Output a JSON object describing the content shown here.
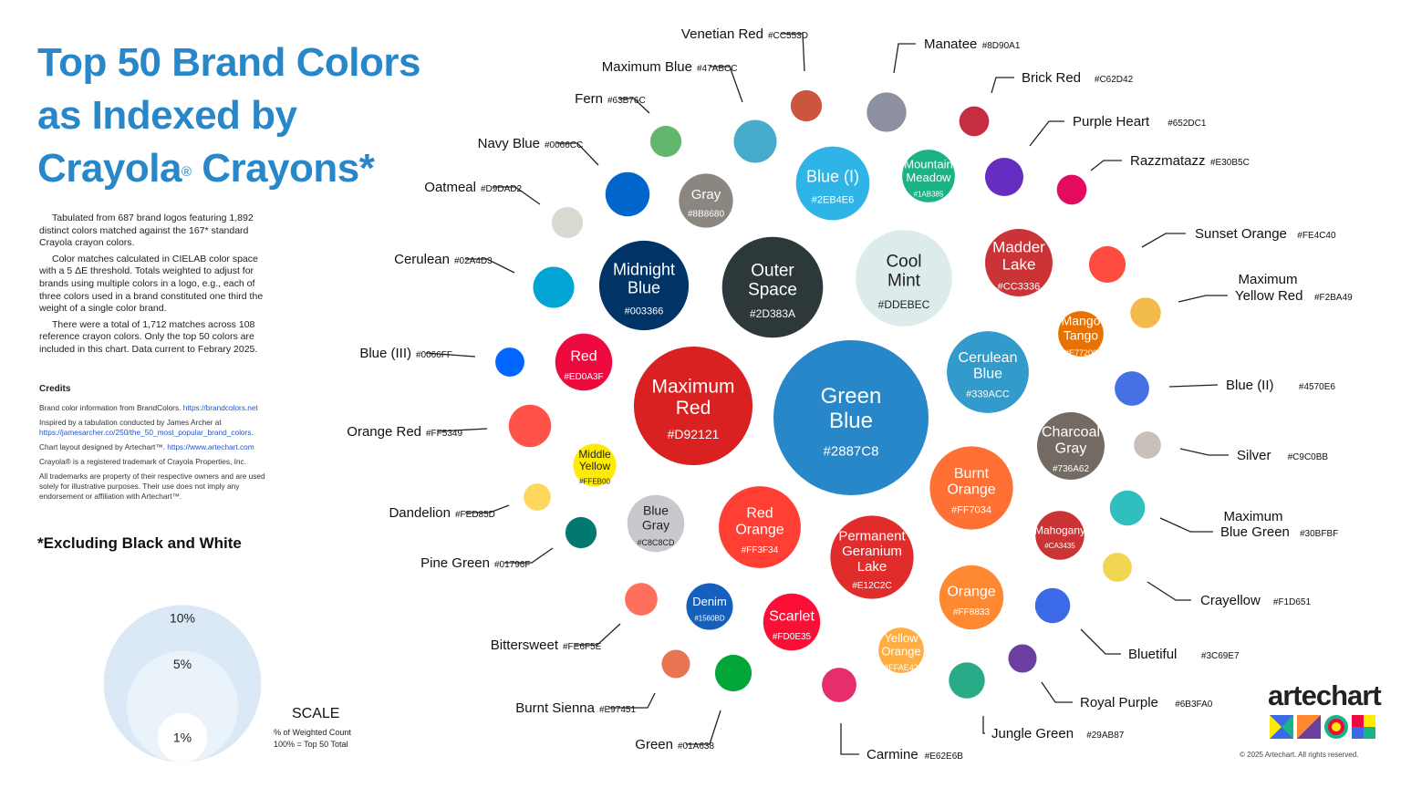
{
  "title": {
    "line1": "Top 50 Brand Colors",
    "line2": "as Indexed by",
    "line3a": "Crayola",
    "reg": "®",
    "line3b": " Crayons*"
  },
  "description": [
    "Tabulated from 687 brand logos featuring 1,892 distinct colors matched against the 167* standard Crayola crayon colors.",
    "Color matches calculated in CIELAB color space with a 5 ΔE threshold. Totals weighted to adjust for brands using multiple colors in a logo, e.g., each of three colors used in a brand constituted one third the weight of a single color brand.",
    "There were a total of 1,712 matches across 108 reference crayon colors. Only the top 50 colors are included in this chart. Data current to Febrary 2025."
  ],
  "credits": {
    "title": "Credits",
    "c1": "Brand color information from BrandColors.",
    "c1_link": "https://brandcolors.net",
    "c2": "Inspired by a tabulation conducted by James Archer at",
    "c2_link": "https://jamesarcher.co/250/the_50_most_popular_brand_colors",
    "c2_end": ".",
    "c3": "Chart layout designed by Artechart™.",
    "c3_link": "https://www.artechart.com",
    "c4": "Crayola® is a registered trademark of Crayola Properties, Inc.",
    "c5": "All trademarks are property of their respective owners and are used solely for illustrative purposes. Their use does not imply any endorsement or affiliation with Artechart™."
  },
  "exclusion": "*Excluding Black and White",
  "scale": {
    "title": "SCALE",
    "line1": "% of Weighted Count",
    "line2": "100% = Top 50 Total",
    "levels": [
      {
        "label": "10%",
        "value": 10
      },
      {
        "label": "5%",
        "value": 5
      },
      {
        "label": "1%",
        "value": 1
      }
    ]
  },
  "brand": {
    "name": "artechart",
    "copyright": "© 2025 Artechart. All rights reserved.",
    "logo_colors": [
      "#3C69E7",
      "#FFEB00",
      "#ED0A3F",
      "#1AB385",
      "#6B3FA0",
      "#FF8833"
    ]
  },
  "chart_data": {
    "type": "bubble",
    "title": "Top 50 Brand Colors as Indexed by Crayola® Crayons*",
    "value_unit": "% of Weighted Count",
    "series": [
      {
        "name": "Green Blue",
        "hex": "#2887C8",
        "value": 11.1
      },
      {
        "name": "Maximum Red",
        "hex": "#D92121",
        "value": 6.5
      },
      {
        "name": "Outer Space",
        "hex": "#2D383A",
        "value": 4.7
      },
      {
        "name": "Cool Mint",
        "hex": "#DDEBEC",
        "value": 4.3
      },
      {
        "name": "Midnight Blue",
        "hex": "#003366",
        "value": 3.7
      },
      {
        "name": "Burnt Orange",
        "hex": "#FF7034",
        "value": 3.2
      },
      {
        "name": "Permanent Geranium Lake",
        "hex": "#E12C2C",
        "value": 3.2
      },
      {
        "name": "Red Orange",
        "hex": "#FF3F34",
        "value": 3.1
      },
      {
        "name": "Cerulean Blue",
        "hex": "#339ACC",
        "value": 3.1
      },
      {
        "name": "Blue (I)",
        "hex": "#2EB4E6",
        "value": 2.5
      },
      {
        "name": "Charcoal Gray",
        "hex": "#736A62",
        "value": 2.1
      },
      {
        "name": "Madder Lake",
        "hex": "#CC3336",
        "value": 2.1
      },
      {
        "name": "Orange",
        "hex": "#FF8833",
        "value": 1.9
      },
      {
        "name": "Red",
        "hex": "#ED0A3F",
        "value": 1.5
      },
      {
        "name": "Blue Gray",
        "hex": "#C8C8CD",
        "value": 1.5
      },
      {
        "name": "Scarlet",
        "hex": "#FD0E35",
        "value": 1.5
      },
      {
        "name": "Gray",
        "hex": "#8B8680",
        "value": 1.35
      },
      {
        "name": "Mountain Meadow",
        "hex": "#1AB385",
        "value": 1.28
      },
      {
        "name": "Mahogany",
        "hex": "#CA3435",
        "value": 1.1
      },
      {
        "name": "Denim",
        "hex": "#1560BD",
        "value": 1.0
      },
      {
        "name": "Mango Tango",
        "hex": "#E77200",
        "value": 0.95
      },
      {
        "name": "Yellow Orange",
        "hex": "#FFAE42",
        "value": 0.95
      },
      {
        "name": "Navy Blue",
        "hex": "#0066CC",
        "value": 0.9
      },
      {
        "name": "Middle Yellow",
        "hex": "#FFEB00",
        "value": 0.85
      },
      {
        "name": "Maximum Blue",
        "hex": "#47ABCC",
        "value": 0.85
      },
      {
        "name": "Orange Red",
        "hex": "#FF5349",
        "value": 0.83
      },
      {
        "name": "Cerulean",
        "hex": "#02A4D3",
        "value": 0.78
      },
      {
        "name": "Manatee",
        "hex": "#8D90A1",
        "value": 0.72
      },
      {
        "name": "Purple Heart",
        "hex": "#652DC1",
        "value": 0.68
      },
      {
        "name": "Green",
        "hex": "#01A638",
        "value": 0.62
      },
      {
        "name": "Sunset Orange",
        "hex": "#FE4C40",
        "value": 0.62
      },
      {
        "name": "Jungle Green",
        "hex": "#29AB87",
        "value": 0.6
      },
      {
        "name": "Maximum Blue Green",
        "hex": "#30BFBF",
        "value": 0.57
      },
      {
        "name": "Bluetiful",
        "hex": "#3C69E7",
        "value": 0.57
      },
      {
        "name": "Blue (II)",
        "hex": "#4570E6",
        "value": 0.55
      },
      {
        "name": "Carmine",
        "hex": "#E62E6B",
        "value": 0.55
      },
      {
        "name": "Bittersweet",
        "hex": "#FE6F5E",
        "value": 0.49
      },
      {
        "name": "Venetian Red",
        "hex": "#CC553D",
        "value": 0.45
      },
      {
        "name": "Fern",
        "hex": "#63B76C",
        "value": 0.45
      },
      {
        "name": "Oatmeal",
        "hex": "#D9DAD2",
        "value": 0.45
      },
      {
        "name": "Pine Green",
        "hex": "#01796F",
        "value": 0.45
      },
      {
        "name": "Maximum Yellow Red",
        "hex": "#F2BA49",
        "value": 0.43
      },
      {
        "name": "Razzmatazz",
        "hex": "#E30B5C",
        "value": 0.41
      },
      {
        "name": "Brick Red",
        "hex": "#C62D42",
        "value": 0.41
      },
      {
        "name": "Crayellow",
        "hex": "#F1D651",
        "value": 0.39
      },
      {
        "name": "Blue (III)",
        "hex": "#0066FF",
        "value": 0.39
      },
      {
        "name": "Burnt Sienna",
        "hex": "#E97451",
        "value": 0.37
      },
      {
        "name": "Royal Purple",
        "hex": "#6B3FA0",
        "value": 0.37
      },
      {
        "name": "Silver",
        "hex": "#C9C0BB",
        "value": 0.34
      },
      {
        "name": "Dandelion",
        "hex": "#FED85D",
        "value": 0.34
      }
    ]
  }
}
